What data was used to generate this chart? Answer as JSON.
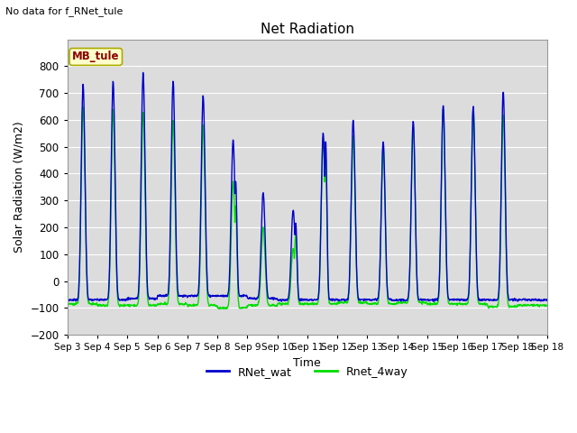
{
  "title": "Net Radiation",
  "xlabel": "Time",
  "ylabel": "Solar Radiation (W/m2)",
  "ylim": [
    -200,
    900
  ],
  "yticks": [
    -200,
    -100,
    0,
    100,
    200,
    300,
    400,
    500,
    600,
    700,
    800
  ],
  "plot_bg": "#dcdcdc",
  "note_text": "No data for f_RNet_tule",
  "legend_label1": "RNet_wat",
  "legend_label2": "Rnet_4way",
  "legend_box_label": "MB_tule",
  "color_blue": "#0000cc",
  "color_green": "#00dd00",
  "xtick_labels": [
    "Sep 3",
    "Sep 4",
    "Sep 5",
    "Sep 6",
    "Sep 7",
    "Sep 8",
    "Sep 9",
    "Sep 10",
    "Sep 11",
    "Sep 12",
    "Sep 13",
    "Sep 14",
    "Sep 15",
    "Sep 16",
    "Sep 17",
    "Sep 18"
  ],
  "n_days": 16,
  "peaks_blue": [
    730,
    745,
    775,
    745,
    690,
    525,
    330,
    265,
    550,
    600,
    520,
    595,
    655,
    650,
    705,
    0
  ],
  "peaks_green": [
    650,
    640,
    630,
    600,
    580,
    370,
    200,
    120,
    520,
    540,
    500,
    575,
    640,
    640,
    620,
    0
  ],
  "night_b": [
    -70,
    -70,
    -65,
    -55,
    -55,
    -55,
    -65,
    -70,
    -70,
    -70,
    -70,
    -70,
    -70,
    -70,
    -70,
    -70
  ],
  "night_g": [
    -85,
    -90,
    -90,
    -85,
    -90,
    -100,
    -90,
    -85,
    -85,
    -80,
    -85,
    -80,
    -85,
    -85,
    -95,
    -90
  ],
  "second_peak_blue": [
    0,
    0,
    0,
    0,
    0,
    375,
    0,
    220,
    520,
    0,
    0,
    0,
    0,
    0,
    0,
    0
  ],
  "second_peak_green": [
    0,
    0,
    0,
    0,
    0,
    280,
    0,
    180,
    465,
    0,
    0,
    0,
    0,
    0,
    0,
    0
  ]
}
